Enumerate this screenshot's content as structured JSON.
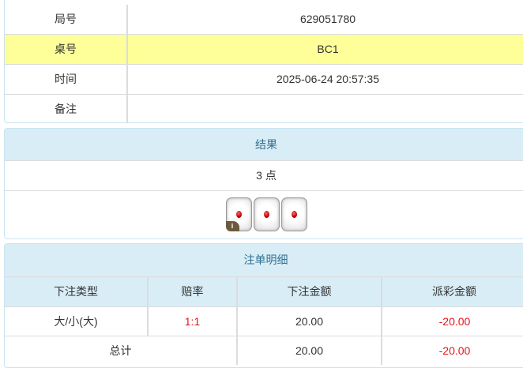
{
  "info": {
    "rows": [
      {
        "label": "局号",
        "value": "629051780"
      },
      {
        "label": "桌号",
        "value": "BC1"
      },
      {
        "label": "时间",
        "value": "2025-06-24 20:57:35"
      },
      {
        "label": "备注",
        "value": ""
      }
    ],
    "highlight_color": "#ffff99"
  },
  "result": {
    "title": "结果",
    "points": "3 点",
    "dice": [
      1,
      1,
      1
    ],
    "info_badge": "i"
  },
  "bets": {
    "title": "注单明细",
    "columns": [
      "下注类型",
      "赔率",
      "下注金额",
      "派彩金额"
    ],
    "rows": [
      {
        "type": "大/小(大)",
        "odds": "1:1",
        "amount": "20.00",
        "payout": "-20.00"
      }
    ],
    "total": {
      "label": "总计",
      "amount": "20.00",
      "payout": "-20.00"
    },
    "negative_color": "#e4141b"
  }
}
